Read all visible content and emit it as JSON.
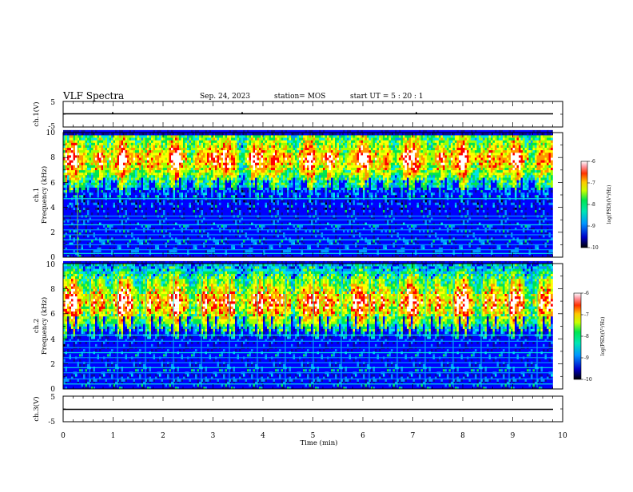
{
  "header": {
    "title": "VLF Spectra",
    "date": "Sep. 24, 2023",
    "station": "station= MOS",
    "start": "start  UT  =   5  : 20 : 1"
  },
  "colors": {
    "palette": [
      "#000000",
      "#0a0a96",
      "#0000ff",
      "#0096ff",
      "#00e6e6",
      "#00e650",
      "#a0ff00",
      "#ffff00",
      "#ff9600",
      "#ff0000",
      "#ffffff"
    ],
    "trace": "#000000"
  },
  "chart_data": [
    {
      "type": "line",
      "name": "ch1-voltage",
      "ylabel": "ch.1(V)",
      "ylim": [
        -5,
        5
      ],
      "yticks": [
        "5",
        "-5"
      ],
      "xlim": [
        0,
        10
      ],
      "series": [
        {
          "x": [
            0,
            9.8
          ],
          "values": [
            0,
            0
          ]
        }
      ]
    },
    {
      "type": "heatmap",
      "name": "ch1-spectrogram",
      "ylabel": [
        "ch.1",
        "Frequency (kHz)"
      ],
      "ylim": [
        0,
        10
      ],
      "yticks": [
        "0",
        "2",
        "4",
        "6",
        "8",
        "10"
      ],
      "xlim": [
        0,
        10
      ],
      "data_xmax": 9.8,
      "colorbar": {
        "label": "log(PSD)(V²/Hz)",
        "range": [
          -10,
          -6
        ],
        "ticks": [
          "-6",
          "-7",
          "-8",
          "-9",
          "-10"
        ]
      },
      "band_khz": [
        4.5,
        9.6
      ],
      "band_peak_khz": 7.8,
      "lines_khz": [
        0.3,
        0.6,
        1.0,
        1.4,
        1.8,
        2.2,
        2.6,
        3.0,
        3.3,
        4.7
      ]
    },
    {
      "type": "heatmap",
      "name": "ch2-spectrogram",
      "ylabel": [
        "ch.2",
        "Frequency (kHz)"
      ],
      "ylim": [
        0,
        10
      ],
      "yticks": [
        "0",
        "2",
        "4",
        "6",
        "8",
        "10"
      ],
      "xlim": [
        0,
        10
      ],
      "data_xmax": 9.8,
      "colorbar": {
        "label": "log(PSD)(V²/Hz)",
        "range": [
          -10,
          -6
        ],
        "ticks": [
          "-6",
          "-7",
          "-8",
          "-9",
          "-10"
        ]
      },
      "band_khz": [
        4.0,
        9.8
      ],
      "band_peak_khz": 6.8,
      "lines_khz": [
        0.4,
        0.8,
        1.3,
        1.7,
        2.1,
        2.5,
        2.9,
        3.3,
        3.8,
        4.3
      ]
    },
    {
      "type": "line",
      "name": "ch3-voltage",
      "ylabel": "ch.3(V)",
      "ylim": [
        -5,
        5
      ],
      "yticks": [
        "5",
        "-5"
      ],
      "xlim": [
        0,
        10
      ],
      "series": [
        {
          "x": [
            0,
            9.8
          ],
          "values": [
            0,
            0
          ]
        }
      ]
    }
  ],
  "xaxis": {
    "label": "Time (min)",
    "ticks": [
      "0",
      "1",
      "2",
      "3",
      "4",
      "5",
      "6",
      "7",
      "8",
      "9",
      "10"
    ]
  }
}
